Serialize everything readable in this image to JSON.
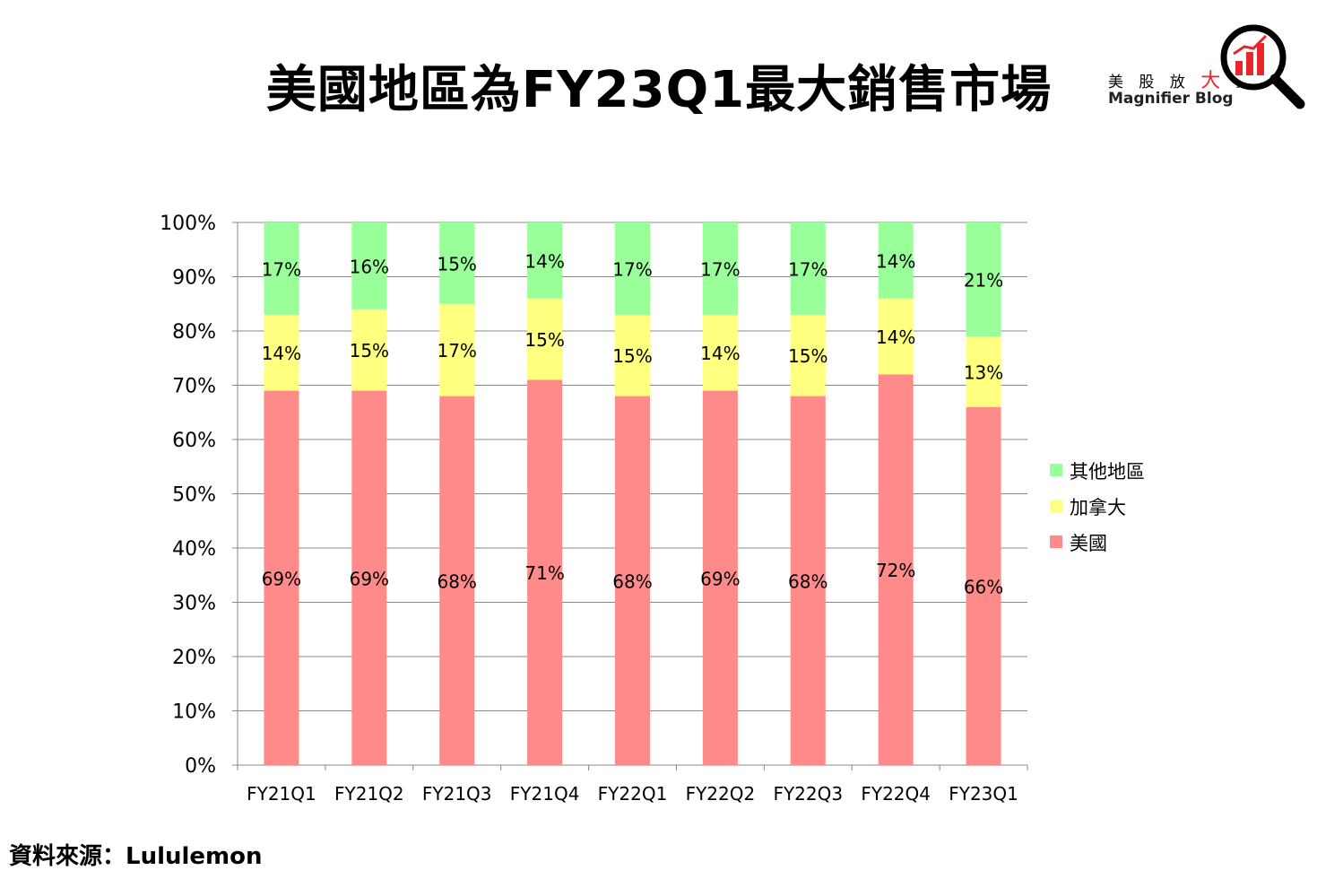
{
  "page": {
    "title": "美國地區為FY23Q1最大銷售市場",
    "source": "資料來源：Lululemon"
  },
  "logo": {
    "cn_prefix": "美 股 放",
    "cn_big": "大",
    "cn_suffix": "鏡",
    "en": "Magnifier Blog"
  },
  "chart_data": {
    "type": "bar",
    "stacked": true,
    "title": "美國地區為FY23Q1最大銷售市場",
    "categories": [
      "FY21Q1",
      "FY21Q2",
      "FY21Q3",
      "FY21Q4",
      "FY22Q1",
      "FY22Q2",
      "FY22Q3",
      "FY22Q4",
      "FY23Q1"
    ],
    "series": [
      {
        "name": "美國",
        "color": "#ff8a8a",
        "values": [
          69,
          69,
          68,
          71,
          68,
          69,
          68,
          72,
          66
        ]
      },
      {
        "name": "加拿大",
        "color": "#ffff80",
        "values": [
          14,
          15,
          17,
          15,
          15,
          14,
          15,
          14,
          13
        ]
      },
      {
        "name": "其他地區",
        "color": "#99ff99",
        "values": [
          17,
          16,
          15,
          14,
          17,
          17,
          17,
          14,
          21
        ]
      }
    ],
    "ylim": [
      0,
      100
    ],
    "yticks": [
      "0%",
      "10%",
      "20%",
      "30%",
      "40%",
      "50%",
      "60%",
      "70%",
      "80%",
      "90%",
      "100%"
    ],
    "value_suffix": "%",
    "grid": true,
    "legend_position": "right"
  }
}
